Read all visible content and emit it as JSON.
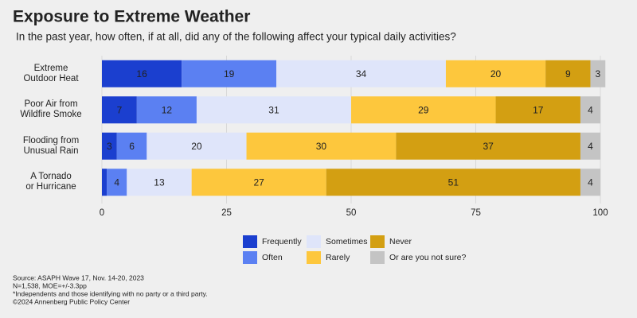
{
  "chart_data": {
    "type": "stacked-bar-horizontal",
    "title": "Exposure to Extreme Weather",
    "subtitle": "In the past year, how often, if at all, did any of the following affect your typical daily activities?",
    "categories": [
      "Extreme\nOutdoor Heat",
      "Poor Air from\nWildfire Smoke",
      "Flooding from\nUnusual Rain",
      "A Tornado\nor Hurricane"
    ],
    "series": [
      {
        "name": "Frequently",
        "color": "#1b3fcf",
        "label_color": "#ffffff",
        "values": [
          16,
          7,
          3,
          1
        ]
      },
      {
        "name": "Often",
        "color": "#5b80f2",
        "label_color": "#ffffff",
        "values": [
          19,
          12,
          6,
          4
        ]
      },
      {
        "name": "Sometimes",
        "color": "#dfe5fa",
        "label_color": "#111111",
        "values": [
          34,
          31,
          20,
          13
        ]
      },
      {
        "name": "Rarely",
        "color": "#fdc73d",
        "label_color": "#111111",
        "values": [
          20,
          29,
          30,
          27
        ]
      },
      {
        "name": "Never",
        "color": "#d39f12",
        "label_color": "#111111",
        "values": [
          9,
          17,
          37,
          51
        ]
      },
      {
        "name": "Or are you not sure?",
        "color": "#c4c4c4",
        "label_color": "#111111",
        "values": [
          3,
          4,
          4,
          4
        ]
      }
    ],
    "xlim": [
      0,
      100
    ],
    "xticks": [
      0,
      25,
      50,
      75,
      100
    ],
    "grid": true,
    "notes": [
      "Source: ASAPH Wave 17, Nov. 14-20, 2023",
      "N=1,538, MOE=+/-3.3pp",
      "*Independents and those identifying with no party or a third party.",
      "©2024 Annenberg Public Policy Center"
    ]
  }
}
